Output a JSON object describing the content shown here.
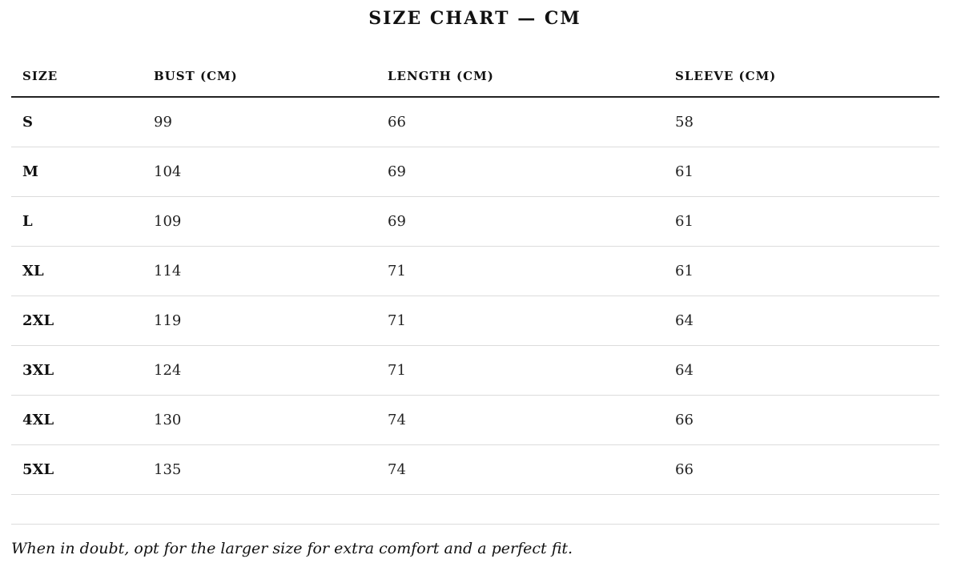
{
  "title": "SIZE CHART — CM",
  "table": {
    "headers": [
      "SIZE",
      "BUST (CM)",
      "LENGTH (CM)",
      "SLEEVE (CM)"
    ],
    "rows": [
      [
        "S",
        "99",
        "66",
        "58"
      ],
      [
        "M",
        "104",
        "69",
        "61"
      ],
      [
        "L",
        "109",
        "69",
        "61"
      ],
      [
        "XL",
        "114",
        "71",
        "61"
      ],
      [
        "2XL",
        "119",
        "71",
        "64"
      ],
      [
        "3XL",
        "124",
        "71",
        "64"
      ],
      [
        "4XL",
        "130",
        "74",
        "66"
      ],
      [
        "5XL",
        "135",
        "74",
        "66"
      ]
    ]
  },
  "note": "When in doubt, opt for the larger size for extra comfort and a perfect fit."
}
